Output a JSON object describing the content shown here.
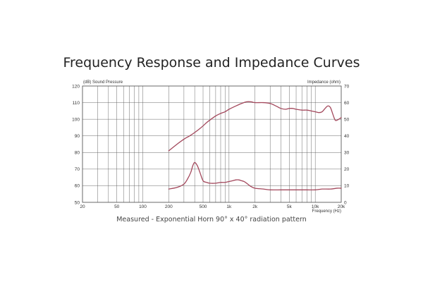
{
  "page": {
    "title": "Frequency Response and Impedance Curves",
    "caption": "Measured - Exponential Horn 90° x 40° radiation pattern"
  },
  "colors": {
    "curve": "#a3485c",
    "grid": "#5a5a5a",
    "frame": "#444444"
  },
  "chart_data": {
    "type": "line",
    "xlabel": "Frequency   (Hz)",
    "ylabel": "(dB)  Sound Pressure",
    "y2label": "Impedance   (ohm)",
    "xscale": "log",
    "xlim": [
      20,
      20000
    ],
    "ylim": [
      50,
      120
    ],
    "y2lim": [
      0,
      70
    ],
    "grid": true,
    "x_ticks": [
      {
        "value": 20,
        "label": "20"
      },
      {
        "value": 50,
        "label": "50"
      },
      {
        "value": 100,
        "label": "100"
      },
      {
        "value": 200,
        "label": "200"
      },
      {
        "value": 500,
        "label": "500"
      },
      {
        "value": 1000,
        "label": "1k"
      },
      {
        "value": 2000,
        "label": "2k"
      },
      {
        "value": 5000,
        "label": "5k"
      },
      {
        "value": 10000,
        "label": "10k"
      },
      {
        "value": 20000,
        "label": "20k"
      }
    ],
    "y_ticks": [
      "120",
      "110",
      "100",
      "90",
      "80",
      "70",
      "60",
      "50"
    ],
    "y2_ticks": [
      "70",
      "60",
      "50",
      "40",
      "30",
      "20",
      "10",
      "0"
    ],
    "series": [
      {
        "axis": "left",
        "x": [
          200,
          250,
          300,
          350,
          400,
          450,
          500,
          550,
          600,
          700,
          800,
          900,
          1000,
          1200,
          1400,
          1600,
          1800,
          2000,
          2500,
          3000,
          3500,
          4000,
          4500,
          5000,
          5500,
          6000,
          7000,
          8000,
          9000,
          10000,
          11000,
          12000,
          13000,
          14000,
          15000,
          16000,
          17000,
          18000,
          20000
        ],
        "values": [
          81,
          85,
          88,
          90,
          92,
          94,
          96,
          98,
          99.5,
          102,
          103.5,
          104.5,
          106,
          108,
          109.5,
          110.5,
          110.5,
          110,
          110,
          109.5,
          108,
          106.5,
          106,
          106.5,
          106.5,
          106,
          105.5,
          105.5,
          105,
          104.5,
          104,
          104.5,
          106.5,
          108,
          107,
          103,
          99.5,
          99.5,
          101
        ]
      },
      {
        "axis": "right",
        "x": [
          200,
          250,
          300,
          330,
          360,
          380,
          400,
          430,
          460,
          500,
          550,
          600,
          700,
          800,
          900,
          1000,
          1100,
          1200,
          1300,
          1400,
          1500,
          1600,
          1800,
          2000,
          2500,
          3000,
          4000,
          5000,
          6000,
          8000,
          10000,
          12000,
          15000,
          18000,
          20000
        ],
        "values": [
          8,
          9,
          11,
          14,
          18,
          22,
          24,
          22,
          18,
          13,
          12,
          11.5,
          11.5,
          12,
          12,
          12.5,
          13,
          13.5,
          13.5,
          13,
          12.5,
          11.5,
          9.5,
          8.5,
          8,
          7.5,
          7.5,
          7.5,
          7.5,
          7.5,
          7.5,
          8,
          8,
          8.5,
          8.5
        ]
      }
    ]
  }
}
